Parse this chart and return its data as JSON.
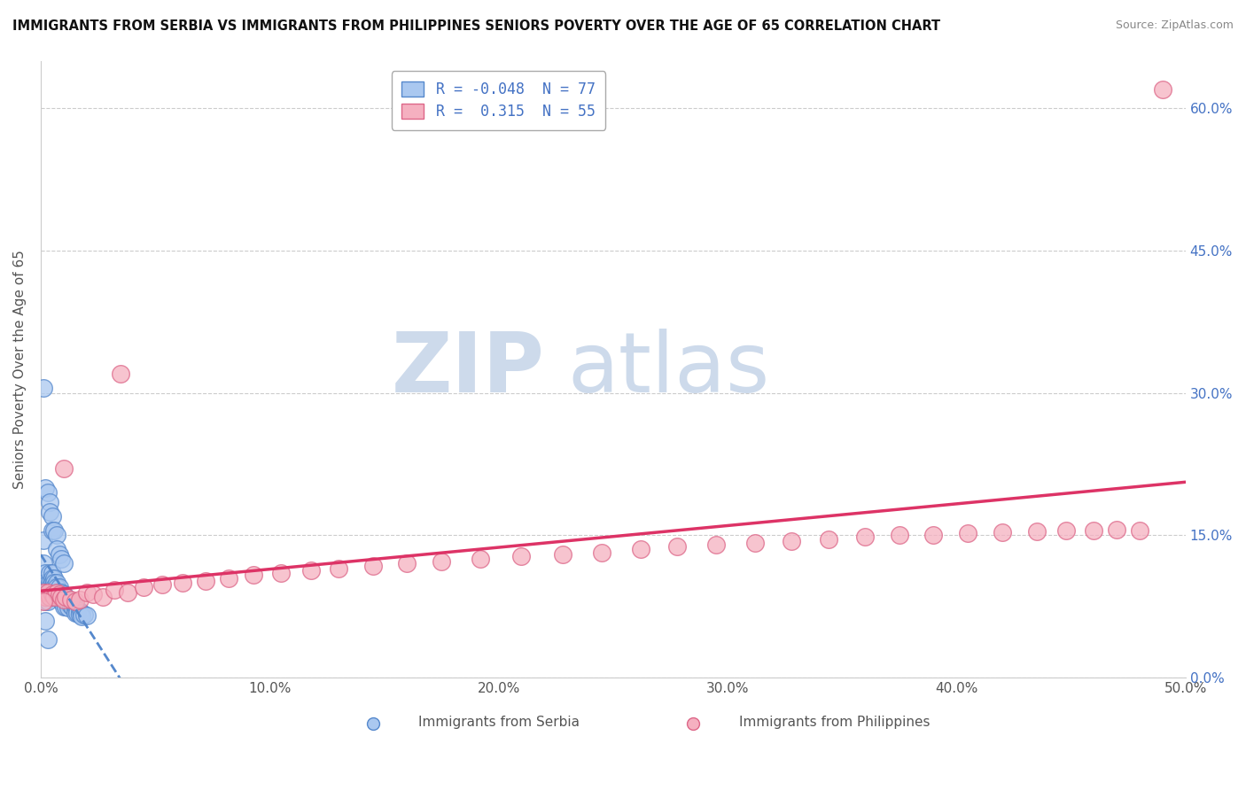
{
  "title": "IMMIGRANTS FROM SERBIA VS IMMIGRANTS FROM PHILIPPINES SENIORS POVERTY OVER THE AGE OF 65 CORRELATION CHART",
  "source": "Source: ZipAtlas.com",
  "ylabel": "Seniors Poverty Over the Age of 65",
  "xlim": [
    0.0,
    0.5
  ],
  "ylim": [
    0.0,
    0.65
  ],
  "xtick_vals": [
    0.0,
    0.1,
    0.2,
    0.3,
    0.4,
    0.5
  ],
  "xticklabels": [
    "0.0%",
    "10.0%",
    "20.0%",
    "30.0%",
    "40.0%",
    "50.0%"
  ],
  "ytick_vals": [
    0.0,
    0.15,
    0.3,
    0.45,
    0.6
  ],
  "yticklabels": [
    "0.0%",
    "15.0%",
    "30.0%",
    "45.0%",
    "60.0%"
  ],
  "legend_serbia": "R = -0.048  N = 77",
  "legend_philippines": "R =  0.315  N = 55",
  "serbia_face": "#aac8f0",
  "serbia_edge": "#5588cc",
  "philippines_face": "#f5b0c0",
  "philippines_edge": "#dd6688",
  "serbia_trend_color": "#5588cc",
  "philippines_trend_color": "#dd3366",
  "watermark_color": "#cddaeb",
  "background_color": "#ffffff",
  "grid_color": "#cccccc",
  "serbia_x": [
    0.001,
    0.001,
    0.001,
    0.002,
    0.002,
    0.002,
    0.002,
    0.003,
    0.003,
    0.003,
    0.003,
    0.003,
    0.004,
    0.004,
    0.004,
    0.004,
    0.004,
    0.005,
    0.005,
    0.005,
    0.005,
    0.005,
    0.005,
    0.006,
    0.006,
    0.006,
    0.006,
    0.007,
    0.007,
    0.007,
    0.007,
    0.008,
    0.008,
    0.008,
    0.009,
    0.009,
    0.009,
    0.01,
    0.01,
    0.01,
    0.01,
    0.011,
    0.011,
    0.011,
    0.012,
    0.012,
    0.012,
    0.013,
    0.013,
    0.014,
    0.014,
    0.015,
    0.015,
    0.015,
    0.016,
    0.016,
    0.017,
    0.017,
    0.018,
    0.018,
    0.019,
    0.02,
    0.002,
    0.003,
    0.004,
    0.004,
    0.005,
    0.005,
    0.006,
    0.007,
    0.007,
    0.008,
    0.009,
    0.01,
    0.001,
    0.002,
    0.003
  ],
  "serbia_y": [
    0.145,
    0.12,
    0.09,
    0.11,
    0.1,
    0.09,
    0.08,
    0.1,
    0.095,
    0.09,
    0.085,
    0.08,
    0.11,
    0.1,
    0.095,
    0.09,
    0.085,
    0.11,
    0.105,
    0.1,
    0.095,
    0.09,
    0.085,
    0.105,
    0.1,
    0.095,
    0.09,
    0.1,
    0.095,
    0.09,
    0.085,
    0.095,
    0.09,
    0.085,
    0.09,
    0.085,
    0.08,
    0.088,
    0.085,
    0.08,
    0.075,
    0.085,
    0.08,
    0.075,
    0.082,
    0.078,
    0.074,
    0.08,
    0.076,
    0.078,
    0.074,
    0.075,
    0.072,
    0.068,
    0.072,
    0.068,
    0.07,
    0.066,
    0.068,
    0.064,
    0.066,
    0.065,
    0.2,
    0.195,
    0.185,
    0.175,
    0.17,
    0.155,
    0.155,
    0.15,
    0.135,
    0.13,
    0.125,
    0.12,
    0.305,
    0.06,
    0.04
  ],
  "philippines_x": [
    0.001,
    0.002,
    0.003,
    0.004,
    0.005,
    0.006,
    0.007,
    0.008,
    0.009,
    0.01,
    0.011,
    0.013,
    0.015,
    0.017,
    0.02,
    0.023,
    0.027,
    0.032,
    0.038,
    0.045,
    0.053,
    0.062,
    0.072,
    0.082,
    0.093,
    0.105,
    0.118,
    0.13,
    0.145,
    0.16,
    0.175,
    0.192,
    0.21,
    0.228,
    0.245,
    0.262,
    0.278,
    0.295,
    0.312,
    0.328,
    0.344,
    0.36,
    0.375,
    0.39,
    0.405,
    0.42,
    0.435,
    0.448,
    0.46,
    0.47,
    0.48,
    0.01,
    0.035,
    0.49,
    0.001
  ],
  "philippines_y": [
    0.09,
    0.085,
    0.09,
    0.085,
    0.088,
    0.085,
    0.09,
    0.088,
    0.085,
    0.082,
    0.085,
    0.082,
    0.08,
    0.082,
    0.09,
    0.088,
    0.085,
    0.092,
    0.09,
    0.095,
    0.098,
    0.1,
    0.102,
    0.105,
    0.108,
    0.11,
    0.113,
    0.115,
    0.118,
    0.12,
    0.122,
    0.125,
    0.128,
    0.13,
    0.132,
    0.135,
    0.138,
    0.14,
    0.142,
    0.144,
    0.146,
    0.148,
    0.15,
    0.15,
    0.152,
    0.153,
    0.154,
    0.155,
    0.155,
    0.156,
    0.155,
    0.22,
    0.32,
    0.62,
    0.08
  ]
}
